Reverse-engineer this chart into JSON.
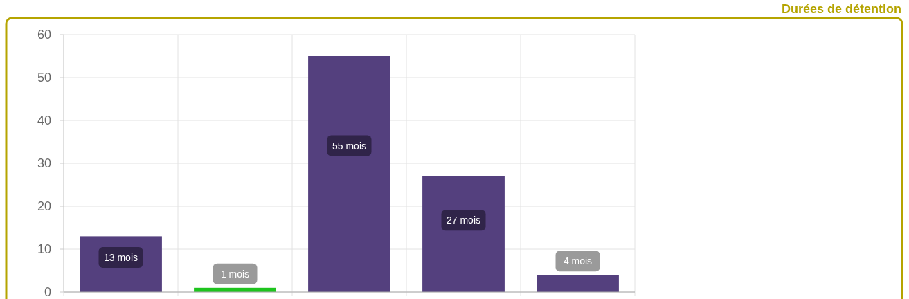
{
  "chart_data": {
    "type": "bar",
    "title": "Durées de détention",
    "categories": [
      null,
      null,
      null,
      null,
      null
    ],
    "values": [
      13,
      1,
      55,
      27,
      4
    ],
    "colors": [
      "#54407e",
      "#1ec41e",
      "#54407e",
      "#54407e",
      "#54407e"
    ],
    "value_labels": [
      "13 mois",
      "1 mois",
      "55 mois",
      "27 mois",
      "4 mois"
    ],
    "ylim": [
      0,
      60
    ],
    "yticks": [
      0,
      10,
      20,
      30,
      40,
      50,
      60
    ],
    "grid": true
  }
}
